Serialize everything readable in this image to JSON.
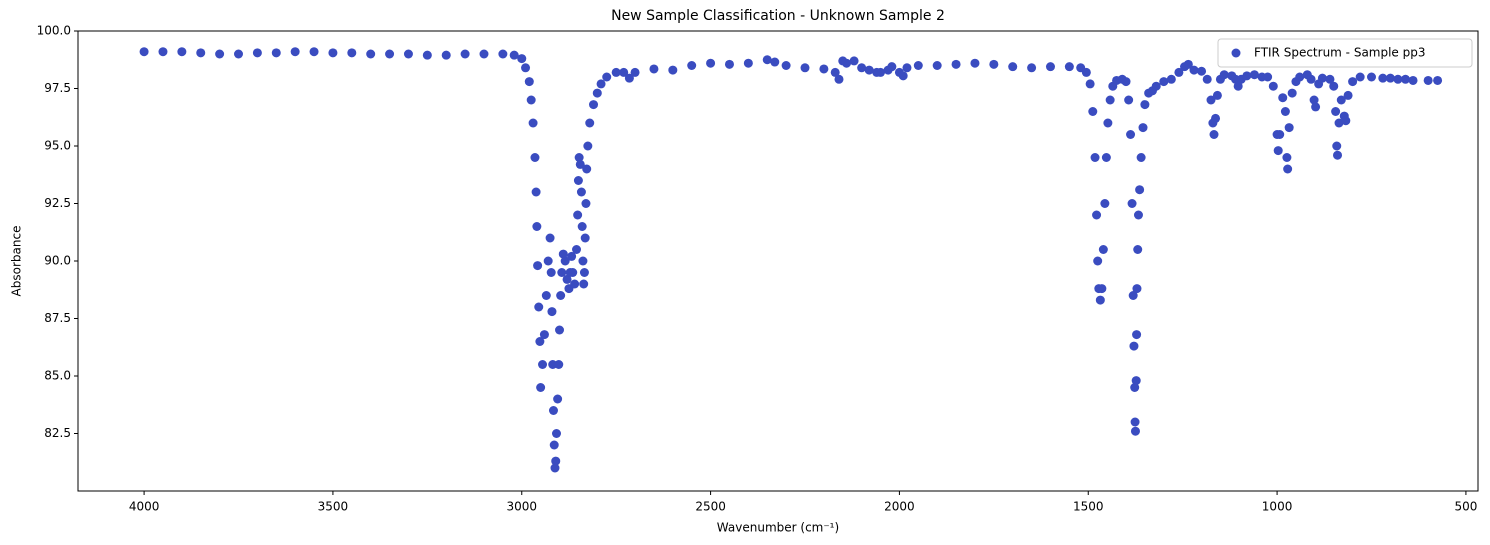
{
  "chart_data": {
    "type": "scatter",
    "title": "New Sample Classification - Unknown Sample 2",
    "x_label": "Wavenumber (cm⁻¹)",
    "y_label": "Absorbance",
    "x": [
      4000,
      3950,
      3900,
      3850,
      3800,
      3750,
      3700,
      3650,
      3600,
      3550,
      3500,
      3450,
      3400,
      3350,
      3300,
      3250,
      3200,
      3150,
      3100,
      3050,
      3020,
      3000,
      2990,
      2980,
      2975,
      2970,
      2965,
      2962,
      2960,
      2958,
      2955,
      2952,
      2950,
      2945,
      2940,
      2935,
      2930,
      2925,
      2922,
      2920,
      2918,
      2916,
      2914,
      2912,
      2910,
      2908,
      2905,
      2902,
      2900,
      2897,
      2894,
      2890,
      2885,
      2880,
      2875,
      2872,
      2868,
      2865,
      2860,
      2855,
      2852,
      2850,
      2848,
      2845,
      2842,
      2840,
      2838,
      2836,
      2834,
      2832,
      2830,
      2828,
      2825,
      2820,
      2810,
      2800,
      2790,
      2775,
      2750,
      2730,
      2715,
      2700,
      2650,
      2600,
      2550,
      2500,
      2450,
      2400,
      2350,
      2330,
      2300,
      2250,
      2200,
      2170,
      2160,
      2150,
      2140,
      2120,
      2100,
      2080,
      2060,
      2050,
      2030,
      2020,
      2000,
      1990,
      1980,
      1950,
      1900,
      1850,
      1800,
      1750,
      1700,
      1650,
      1600,
      1550,
      1520,
      1505,
      1495,
      1488,
      1482,
      1478,
      1475,
      1472,
      1468,
      1464,
      1460,
      1456,
      1452,
      1448,
      1442,
      1435,
      1425,
      1410,
      1400,
      1393,
      1388,
      1384,
      1381,
      1379,
      1377,
      1376,
      1375,
      1373,
      1372,
      1371,
      1369,
      1367,
      1364,
      1360,
      1355,
      1350,
      1340,
      1330,
      1320,
      1300,
      1280,
      1260,
      1245,
      1235,
      1220,
      1200,
      1185,
      1175,
      1170,
      1167,
      1163,
      1158,
      1150,
      1140,
      1120,
      1110,
      1103,
      1095,
      1080,
      1060,
      1040,
      1025,
      1010,
      1000,
      997,
      993,
      985,
      978,
      974,
      972,
      968,
      960,
      950,
      940,
      920,
      910,
      902,
      898,
      890,
      880,
      860,
      850,
      845,
      842,
      840,
      836,
      830,
      822,
      818,
      812,
      800,
      780,
      750,
      720,
      700,
      680,
      660,
      640,
      600,
      575
    ],
    "series": [
      {
        "name": "FTIR Spectrum - Sample pp3",
        "color": "#3a4cc0",
        "values": [
          99.1,
          99.1,
          99.1,
          99.05,
          99.0,
          99.0,
          99.05,
          99.05,
          99.1,
          99.1,
          99.05,
          99.05,
          99.0,
          99.0,
          99.0,
          98.95,
          98.95,
          99.0,
          99.0,
          99.0,
          98.95,
          98.8,
          98.4,
          97.8,
          97.0,
          96.0,
          94.5,
          93.0,
          91.5,
          89.8,
          88.0,
          86.5,
          84.5,
          85.5,
          86.8,
          88.5,
          90.0,
          91.0,
          89.5,
          87.8,
          85.5,
          83.5,
          82.0,
          81.0,
          81.3,
          82.5,
          84.0,
          85.5,
          87.0,
          88.5,
          89.5,
          90.3,
          90.0,
          89.2,
          88.8,
          89.5,
          90.2,
          89.5,
          89.0,
          90.5,
          92.0,
          93.5,
          94.5,
          94.2,
          93.0,
          91.5,
          90.0,
          89.0,
          89.5,
          91.0,
          92.5,
          94.0,
          95.0,
          96.0,
          96.8,
          97.3,
          97.7,
          98.0,
          98.2,
          98.2,
          97.95,
          98.2,
          98.35,
          98.3,
          98.5,
          98.6,
          98.55,
          98.6,
          98.75,
          98.65,
          98.5,
          98.4,
          98.35,
          98.2,
          97.9,
          98.7,
          98.6,
          98.7,
          98.4,
          98.3,
          98.2,
          98.2,
          98.3,
          98.45,
          98.2,
          98.05,
          98.4,
          98.5,
          98.5,
          98.55,
          98.6,
          98.55,
          98.45,
          98.4,
          98.45,
          98.45,
          98.4,
          98.2,
          97.7,
          96.5,
          94.5,
          92.0,
          90.0,
          88.8,
          88.3,
          88.8,
          90.5,
          92.5,
          94.5,
          96.0,
          97.0,
          97.6,
          97.85,
          97.9,
          97.8,
          97.0,
          95.5,
          92.5,
          88.5,
          86.3,
          84.5,
          83.0,
          82.6,
          84.8,
          86.8,
          88.8,
          90.5,
          92.0,
          93.1,
          94.5,
          95.8,
          96.8,
          97.3,
          97.4,
          97.6,
          97.8,
          97.9,
          98.2,
          98.45,
          98.55,
          98.3,
          98.25,
          97.9,
          97.0,
          96.0,
          95.5,
          96.2,
          97.2,
          97.9,
          98.1,
          98.05,
          97.9,
          97.6,
          97.9,
          98.05,
          98.1,
          98.0,
          98.0,
          97.6,
          95.5,
          94.8,
          95.5,
          97.1,
          96.5,
          94.5,
          94.0,
          95.8,
          97.3,
          97.8,
          98.0,
          98.1,
          97.9,
          97.0,
          96.7,
          97.7,
          97.95,
          97.9,
          97.6,
          96.5,
          95.0,
          94.6,
          96.0,
          97.0,
          96.3,
          96.1,
          97.2,
          97.8,
          98.0,
          98.0,
          97.95,
          97.95,
          97.9,
          97.9,
          97.85,
          97.85,
          97.85
        ]
      }
    ],
    "xlim": [
      4175,
      468
    ],
    "ylim": [
      80.0,
      100
    ],
    "xticks": [
      4000,
      3500,
      3000,
      2500,
      2000,
      1500,
      1000,
      500
    ],
    "yticks": [
      82.5,
      {
        "value": 85,
        "label": "85.0"
      },
      87.5,
      {
        "value": 90,
        "label": "90.0"
      },
      92.5,
      {
        "value": 95,
        "label": "95.0"
      },
      97.5,
      {
        "value": 100,
        "label": "100.0"
      }
    ],
    "grid": false,
    "legend": "upper-right"
  }
}
